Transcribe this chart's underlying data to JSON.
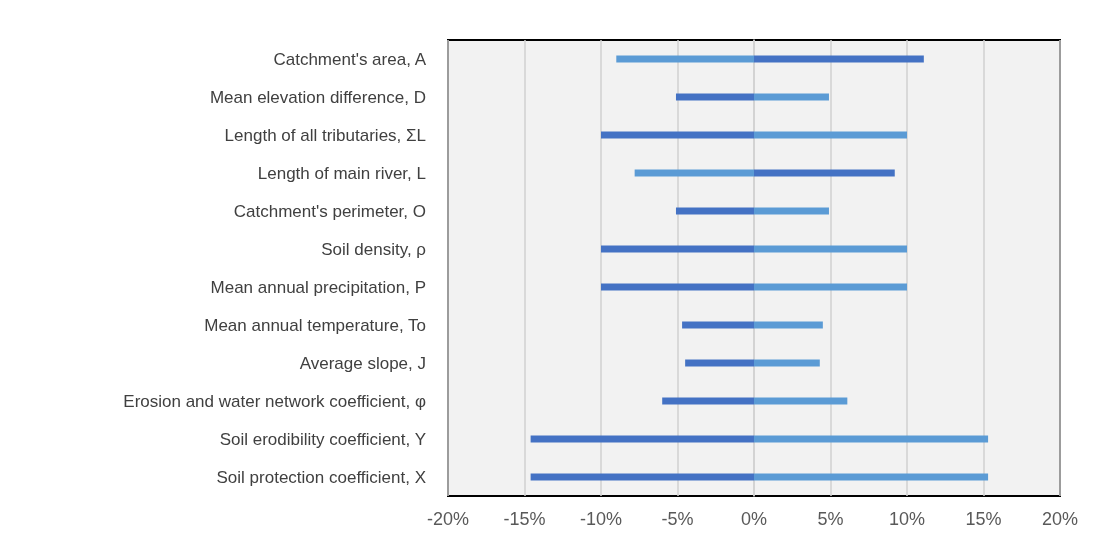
{
  "chart_data": {
    "type": "bar",
    "orientation": "horizontal",
    "grid": "x",
    "stacked": true,
    "categories": [
      "Catchment's area, A",
      "Mean elevation difference, D",
      "Length of all tributaries, ΣL",
      "Length of main river, L",
      "Catchment's perimeter, O",
      "Soil density, ρ",
      "Mean annual precipitation, P",
      "Mean annual temperature, To",
      "Average slope, J",
      "Erosion and water network coefficient, φ",
      "Soil erodibility coefficient, Y",
      "Soil protection coefficient, X"
    ],
    "series": [
      {
        "values": [
          -9,
          -5.1,
          -10,
          -7.8,
          -5.1,
          -10,
          -10,
          -4.7,
          -4.5,
          -6,
          -14.6,
          -14.6
        ],
        "colors": [
          "#5b9bd5",
          "#4472c4",
          "#4472c4",
          "#5b9bd5",
          "#4472c4",
          "#4472c4",
          "#4472c4",
          "#4472c4",
          "#4472c4",
          "#4472c4",
          "#4472c4",
          "#4472c4"
        ]
      },
      {
        "values": [
          11.1,
          4.9,
          10,
          9.2,
          4.9,
          10,
          10,
          4.5,
          4.3,
          6.1,
          15.3,
          15.3
        ],
        "colors": [
          "#4472c4",
          "#5b9bd5",
          "#5b9bd5",
          "#4472c4",
          "#5b9bd5",
          "#5b9bd5",
          "#5b9bd5",
          "#5b9bd5",
          "#5b9bd5",
          "#5b9bd5",
          "#5b9bd5",
          "#5b9bd5"
        ]
      }
    ],
    "xlim": [
      -20,
      20
    ],
    "xticks": [
      {
        "value": -20,
        "label": "-20%"
      },
      {
        "value": -15,
        "label": "-15%"
      },
      {
        "value": -10,
        "label": "-10%"
      },
      {
        "value": -5,
        "label": "-5%"
      },
      {
        "value": 0,
        "label": "0%"
      },
      {
        "value": 5,
        "label": "5%"
      },
      {
        "value": 10,
        "label": "10%"
      },
      {
        "value": 15,
        "label": "15%"
      },
      {
        "value": 20,
        "label": "20%"
      }
    ]
  }
}
